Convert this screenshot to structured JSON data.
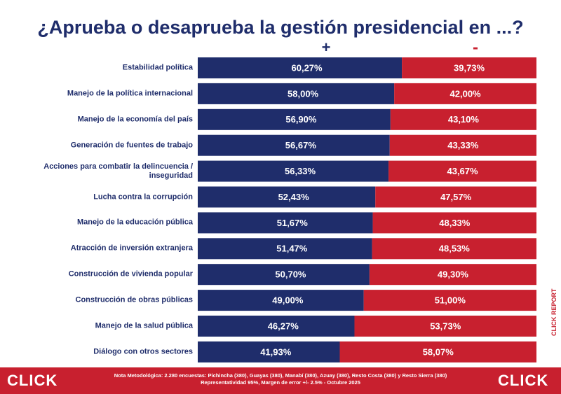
{
  "chart_data": {
    "type": "stacked-bar-horizontal",
    "title": "¿Aprueba o desaprueba la gestión presidencial en ...?",
    "categories": [
      "Estabilidad política",
      "Manejo de la política internacional",
      "Manejo de la economía del país",
      "Generación de fuentes de trabajo",
      "Acciones para combatir la delincuencia / inseguridad",
      "Lucha contra la corrupción",
      "Manejo de la educación pública",
      "Atracción de inversión extranjera",
      "Construcción de vivienda popular",
      "Construcción de obras públicas",
      "Manejo de la salud pública",
      "Diálogo con otros sectores"
    ],
    "series": [
      {
        "name": "+",
        "color": "#1f2d6b",
        "values": [
          60.27,
          58.0,
          56.9,
          56.67,
          56.33,
          52.43,
          51.67,
          51.47,
          50.7,
          49.0,
          46.27,
          41.93
        ],
        "value_labels": [
          "60,27%",
          "58,00%",
          "56,90%",
          "56,67%",
          "56,33%",
          "52,43%",
          "51,67%",
          "51,47%",
          "50,70%",
          "49,00%",
          "46,27%",
          "41,93%"
        ]
      },
      {
        "name": "-",
        "color": "#c8202f",
        "values": [
          39.73,
          42.0,
          43.1,
          43.33,
          43.67,
          47.57,
          48.33,
          48.53,
          49.3,
          51.0,
          53.73,
          58.07
        ],
        "value_labels": [
          "39,73%",
          "42,00%",
          "43,10%",
          "43,33%",
          "43,67%",
          "47,57%",
          "48,33%",
          "48,53%",
          "49,30%",
          "51,00%",
          "53,73%",
          "58,07%"
        ]
      }
    ],
    "xlim": [
      0,
      100
    ],
    "side_label": "CLICK REPORT",
    "footer": {
      "logo": "CLICK",
      "note": "Nota Metodológica: 2.280 encuestas: Pichincha (380), Guayas (380), Manabí (380), Azuay (380), Resto Costa (380) y Resto Sierra (380)",
      "note2": "Representatividad 95%, Margen de error +/- 2.5% - Octubre 2025"
    }
  }
}
